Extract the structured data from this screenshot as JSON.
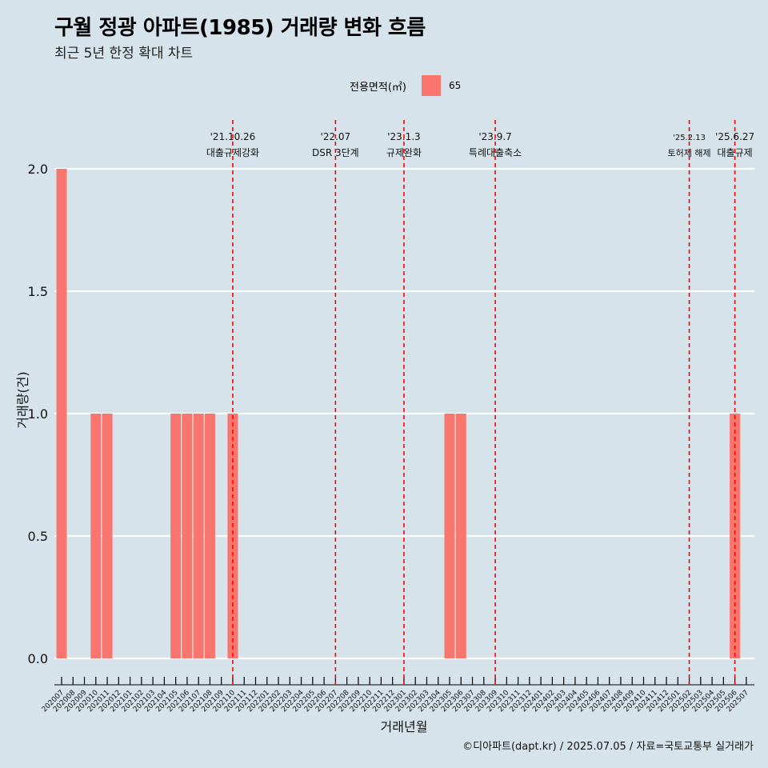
{
  "title": "구월 정광 아파트(1985) 거래량 변화 흐름",
  "subtitle": "최근 5년 한정 확대 차트",
  "legend": {
    "title": "전용면적(㎡)",
    "items": [
      {
        "label": "65",
        "color": "#f8766d"
      }
    ]
  },
  "caption": "©디아파트(dapt.kr) / 2025.07.05 / 자료=국토교통부 실거래가",
  "chart_data": {
    "type": "bar",
    "xlabel": "거래년월",
    "ylabel": "거래량(건)",
    "ylim": [
      0,
      2
    ],
    "yticks": [
      "0.0",
      "0.5",
      "1.0",
      "1.5",
      "2.0"
    ],
    "grid": true,
    "legend_position": "top",
    "categories": [
      "202007",
      "202008",
      "202009",
      "202010",
      "202011",
      "202012",
      "202101",
      "202102",
      "202103",
      "202104",
      "202105",
      "202106",
      "202107",
      "202108",
      "202109",
      "202110",
      "202111",
      "202112",
      "202201",
      "202202",
      "202203",
      "202204",
      "202205",
      "202206",
      "202207",
      "202208",
      "202209",
      "202210",
      "202211",
      "202212",
      "202301",
      "202302",
      "202303",
      "202304",
      "202305",
      "202306",
      "202307",
      "202308",
      "202309",
      "202310",
      "202311",
      "202312",
      "202401",
      "202402",
      "202403",
      "202404",
      "202405",
      "202406",
      "202407",
      "202408",
      "202409",
      "202410",
      "202411",
      "202412",
      "202501",
      "202502",
      "202503",
      "202504",
      "202505",
      "202506",
      "202507"
    ],
    "series": [
      {
        "name": "65",
        "color": "#f8766d",
        "values": [
          2,
          0,
          0,
          1,
          1,
          0,
          0,
          0,
          0,
          0,
          1,
          1,
          1,
          1,
          0,
          1,
          0,
          0,
          0,
          0,
          0,
          0,
          0,
          0,
          0,
          0,
          0,
          0,
          0,
          0,
          0,
          0,
          0,
          0,
          1,
          1,
          0,
          0,
          0,
          0,
          0,
          0,
          0,
          0,
          0,
          0,
          0,
          0,
          0,
          0,
          0,
          0,
          0,
          0,
          0,
          0,
          0,
          0,
          0,
          1,
          0
        ]
      }
    ],
    "annotations": [
      {
        "category": "202110",
        "line1": "'21.10.26",
        "line2": "대출규제강화",
        "color": "#ff0000"
      },
      {
        "category": "202207",
        "line1": "'22.07",
        "line2": "DSR 3단계",
        "color": "#ff0000"
      },
      {
        "category": "202301",
        "line1": "'23.1.3",
        "line2": "규제완화",
        "color": "#ff0000"
      },
      {
        "category": "202309",
        "line1": "'23.9.7",
        "line2": "특례대출축소",
        "color": "#ff0000"
      },
      {
        "category": "202502",
        "line1": "'25.2.13",
        "line2": "토허제 해제",
        "color": "#ff0000"
      },
      {
        "category": "202506",
        "line1": "'25.6.27",
        "line2": "대출규제",
        "color": "#ff0000"
      }
    ]
  }
}
